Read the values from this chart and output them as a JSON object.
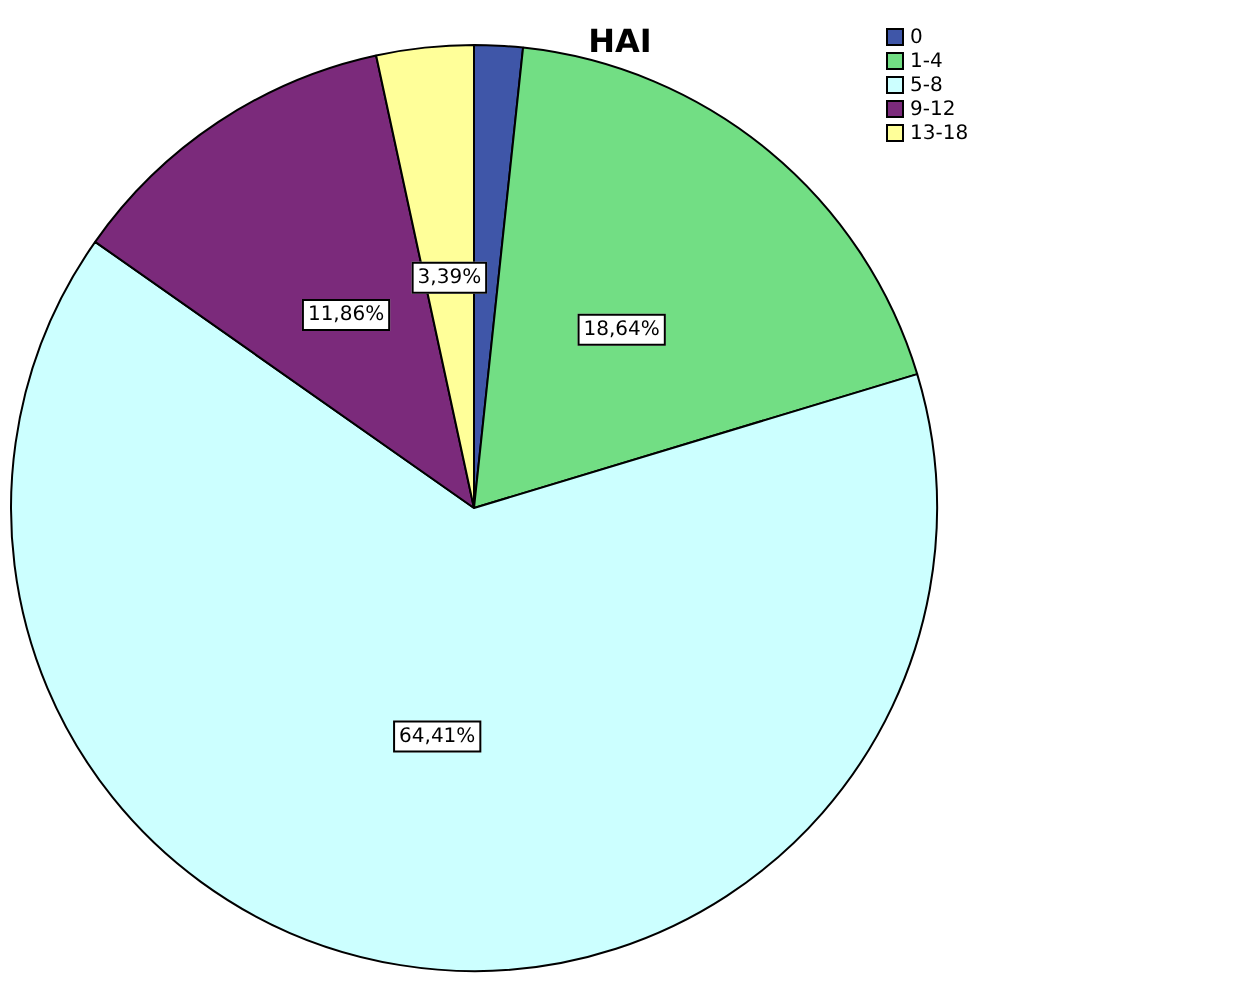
{
  "chart_data": {
    "type": "pie",
    "title": "HAI",
    "categories": [
      "0",
      "1-4",
      "5-8",
      "9-12",
      "13-18"
    ],
    "values": [
      1.69,
      18.64,
      64.41,
      11.86,
      3.39
    ],
    "value_labels": [
      null,
      "18,64%",
      "64,41%",
      "11,86%",
      "3,39%"
    ],
    "colors": [
      "#3f56a8",
      "#72de84",
      "#ccffff",
      "#7b2a7b",
      "#ffff99"
    ],
    "legend": "top right"
  }
}
